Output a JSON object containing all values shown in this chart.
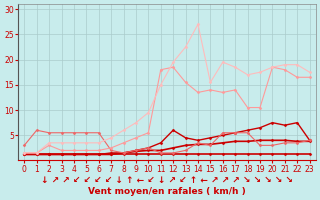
{
  "xlabel": "Vent moyen/en rafales ( km/h )",
  "background_color": "#c8ecec",
  "grid_color": "#aacccc",
  "x_ticks": [
    0,
    1,
    2,
    3,
    4,
    5,
    6,
    7,
    8,
    9,
    10,
    11,
    12,
    13,
    14,
    15,
    16,
    17,
    18,
    19,
    20,
    21,
    22,
    23
  ],
  "ylim": [
    0,
    31
  ],
  "xlim": [
    -0.5,
    23.5
  ],
  "yticks": [
    5,
    10,
    15,
    20,
    25,
    30
  ],
  "series": [
    {
      "x": [
        0,
        1,
        2,
        3,
        4,
        5,
        6,
        7,
        8,
        9,
        10,
        11,
        12,
        13,
        14,
        15,
        16,
        17,
        18,
        19,
        20,
        21,
        22,
        23
      ],
      "y": [
        1.2,
        1.2,
        1.2,
        1.2,
        1.2,
        1.2,
        1.2,
        1.2,
        1.2,
        1.2,
        1.2,
        1.2,
        1.2,
        1.2,
        1.2,
        1.2,
        1.2,
        1.2,
        1.2,
        1.2,
        1.2,
        1.2,
        1.2,
        1.2
      ],
      "color": "#cc0000",
      "linewidth": 1.2,
      "marker": "D",
      "markersize": 1.5
    },
    {
      "x": [
        0,
        1,
        2,
        3,
        4,
        5,
        6,
        7,
        8,
        9,
        10,
        11,
        12,
        13,
        14,
        15,
        16,
        17,
        18,
        19,
        20,
        21,
        22,
        23
      ],
      "y": [
        1.2,
        1.2,
        1.2,
        1.2,
        1.2,
        1.2,
        1.2,
        1.2,
        1.5,
        1.8,
        2.0,
        2.0,
        2.5,
        3.0,
        3.2,
        3.2,
        3.5,
        3.8,
        3.8,
        4.0,
        4.0,
        4.0,
        3.8,
        3.8
      ],
      "color": "#cc0000",
      "linewidth": 1.2,
      "marker": "D",
      "markersize": 1.5
    },
    {
      "x": [
        0,
        1,
        2,
        3,
        4,
        5,
        6,
        7,
        8,
        9,
        10,
        11,
        12,
        13,
        14,
        15,
        16,
        17,
        18,
        19,
        20,
        21,
        22,
        23
      ],
      "y": [
        1.2,
        1.2,
        1.2,
        1.2,
        1.2,
        1.2,
        1.2,
        1.5,
        1.5,
        2.0,
        2.5,
        3.5,
        6.0,
        4.5,
        4.0,
        4.5,
        5.0,
        5.5,
        6.0,
        6.5,
        7.5,
        7.0,
        7.5,
        4.0
      ],
      "color": "#cc0000",
      "linewidth": 1.0,
      "marker": "D",
      "markersize": 1.5
    },
    {
      "x": [
        0,
        1,
        2,
        3,
        4,
        5,
        6,
        7,
        8,
        9,
        10,
        11,
        12,
        13,
        14,
        15,
        16,
        17,
        18,
        19,
        20,
        21,
        22,
        23
      ],
      "y": [
        3.0,
        6.0,
        5.5,
        5.5,
        5.5,
        5.5,
        5.5,
        2.0,
        1.5,
        2.0,
        2.5,
        1.5,
        1.5,
        2.0,
        3.5,
        3.0,
        5.5,
        5.5,
        5.5,
        3.0,
        3.0,
        3.5,
        3.5,
        4.0
      ],
      "color": "#ee6666",
      "linewidth": 0.8,
      "marker": "D",
      "markersize": 1.5
    },
    {
      "x": [
        0,
        1,
        2,
        3,
        4,
        5,
        6,
        7,
        8,
        9,
        10,
        11,
        12,
        13,
        14,
        15,
        16,
        17,
        18,
        19,
        20,
        21,
        22,
        23
      ],
      "y": [
        1.5,
        1.5,
        3.0,
        2.0,
        2.0,
        2.0,
        2.0,
        2.5,
        3.5,
        4.5,
        5.5,
        18.0,
        18.5,
        15.5,
        13.5,
        14.0,
        13.5,
        14.0,
        10.5,
        10.5,
        18.5,
        18.0,
        16.5,
        16.5
      ],
      "color": "#ff9999",
      "linewidth": 0.8,
      "marker": "D",
      "markersize": 1.5
    },
    {
      "x": [
        0,
        1,
        2,
        3,
        4,
        5,
        6,
        7,
        8,
        9,
        10,
        11,
        12,
        13,
        14,
        15,
        16,
        17,
        18,
        19,
        20,
        21,
        22,
        23
      ],
      "y": [
        1.5,
        1.5,
        3.5,
        3.5,
        3.5,
        3.5,
        3.5,
        4.5,
        6.0,
        7.5,
        9.5,
        15.0,
        19.5,
        22.5,
        27.0,
        15.5,
        19.5,
        18.5,
        17.0,
        17.5,
        18.5,
        19.0,
        19.0,
        17.5
      ],
      "color": "#ffbbbb",
      "linewidth": 0.8,
      "marker": "D",
      "markersize": 1.5
    }
  ],
  "tick_fontsize": 5.5,
  "label_fontsize": 6.5,
  "arrow_chars": [
    "↓",
    "↗",
    "↗",
    "↙",
    "↙",
    "↙",
    "↙",
    "↓",
    "↑",
    "←",
    "↙",
    "↓",
    "↗",
    "↙",
    "↑",
    "←",
    "↗",
    "↗",
    "↗",
    "↘",
    "↘",
    "↘",
    "↘",
    "↘"
  ]
}
